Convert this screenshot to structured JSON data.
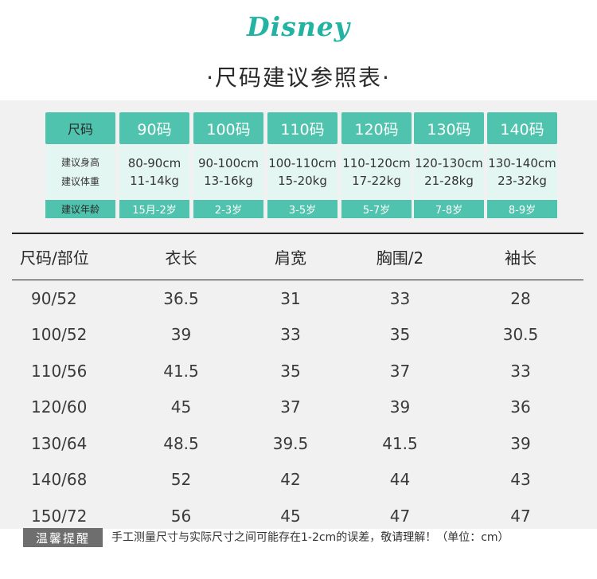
{
  "brand": {
    "logo_text": "Disney"
  },
  "title": "·尺码建议参照表·",
  "recommend": {
    "header_label": "尺码",
    "height_label": "建议身高",
    "weight_label": "建议体重",
    "age_label": "建议年龄",
    "sizes": [
      {
        "size": "90码",
        "height": "80-90cm",
        "weight": "11-14kg",
        "age": "15月-2岁"
      },
      {
        "size": "100码",
        "height": "90-100cm",
        "weight": "13-16kg",
        "age": "2-3岁"
      },
      {
        "size": "110码",
        "height": "100-110cm",
        "weight": "15-20kg",
        "age": "3-5岁"
      },
      {
        "size": "120码",
        "height": "110-120cm",
        "weight": "17-22kg",
        "age": "5-7岁"
      },
      {
        "size": "130码",
        "height": "120-130cm",
        "weight": "21-28kg",
        "age": "7-8岁"
      },
      {
        "size": "140码",
        "height": "130-140cm",
        "weight": "23-32kg",
        "age": "8-9岁"
      }
    ]
  },
  "measure": {
    "headers": [
      "尺码/部位",
      "衣长",
      "肩宽",
      "胸围/2",
      "袖长"
    ],
    "rows": [
      [
        "90/52",
        "36.5",
        "31",
        "33",
        "28"
      ],
      [
        "100/52",
        "39",
        "33",
        "35",
        "30.5"
      ],
      [
        "110/56",
        "41.5",
        "35",
        "37",
        "33"
      ],
      [
        "120/60",
        "45",
        "37",
        "39",
        "36"
      ],
      [
        "130/64",
        "48.5",
        "39.5",
        "41.5",
        "39"
      ],
      [
        "140/68",
        "52",
        "42",
        "44",
        "43"
      ],
      [
        "150/72",
        "56",
        "45",
        "47",
        "47"
      ]
    ]
  },
  "note": {
    "tag": "温馨提醒",
    "text": "手工测量尺寸与实际尺寸之间可能存在1-2cm的误差，敬请理解！（单位：cm）"
  },
  "colors": {
    "accent": "#4fc3ad",
    "accent_light": "#e4f6f1",
    "logo": "#22b3a3",
    "tag_bg": "#6e6e6e",
    "panel_bg": "#f1f1f1"
  }
}
